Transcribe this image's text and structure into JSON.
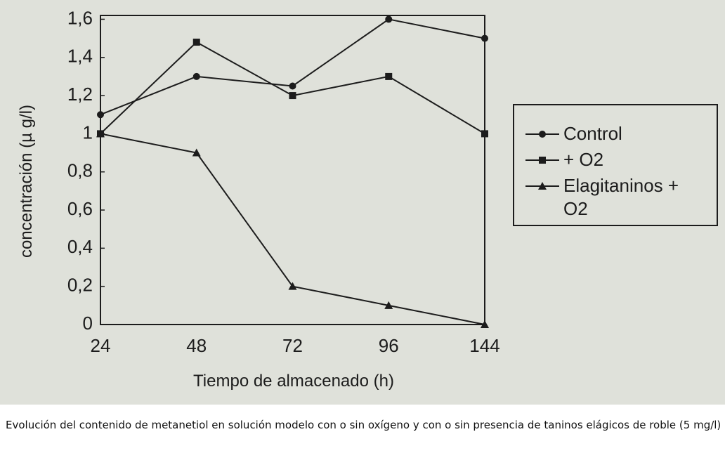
{
  "chart_data": {
    "type": "line",
    "x_label": "Tiempo de almacenado (h)",
    "y_label": "concentración (µ g/l)",
    "categories": [
      "24",
      "48",
      "72",
      "96",
      "144"
    ],
    "series": [
      {
        "name": "Control",
        "color": "#1c1c1c",
        "marker": "circle",
        "values": [
          1.1,
          1.3,
          1.25,
          1.6,
          1.5
        ]
      },
      {
        "name": "+ O2",
        "color": "#1c1c1c",
        "marker": "square",
        "values": [
          1.0,
          1.48,
          1.2,
          1.3,
          1.0
        ]
      },
      {
        "name": "Elagitaninos + O2",
        "color": "#1c1c1c",
        "marker": "triangle",
        "values": [
          1.0,
          0.9,
          0.2,
          0.1,
          0
        ]
      }
    ],
    "ylim": [
      0,
      1.62
    ],
    "yticks": [
      0,
      {
        "value": 0.2,
        "label": "0,2"
      },
      {
        "value": 0.4,
        "label": "0,4"
      },
      {
        "value": 0.6,
        "label": "0,6"
      },
      {
        "value": 0.8,
        "label": "0,8"
      },
      1,
      {
        "value": 1.2,
        "label": "1,2"
      },
      {
        "value": 1.4,
        "label": "1,4"
      },
      {
        "value": 1.6,
        "label": "1,6"
      }
    ],
    "grid": false,
    "legend": "right",
    "caption": "Evolución del contenido de metanetiol en solución modelo con o sin oxígeno y con o sin presencia de taninos elágicos de roble (5 mg/l)"
  }
}
